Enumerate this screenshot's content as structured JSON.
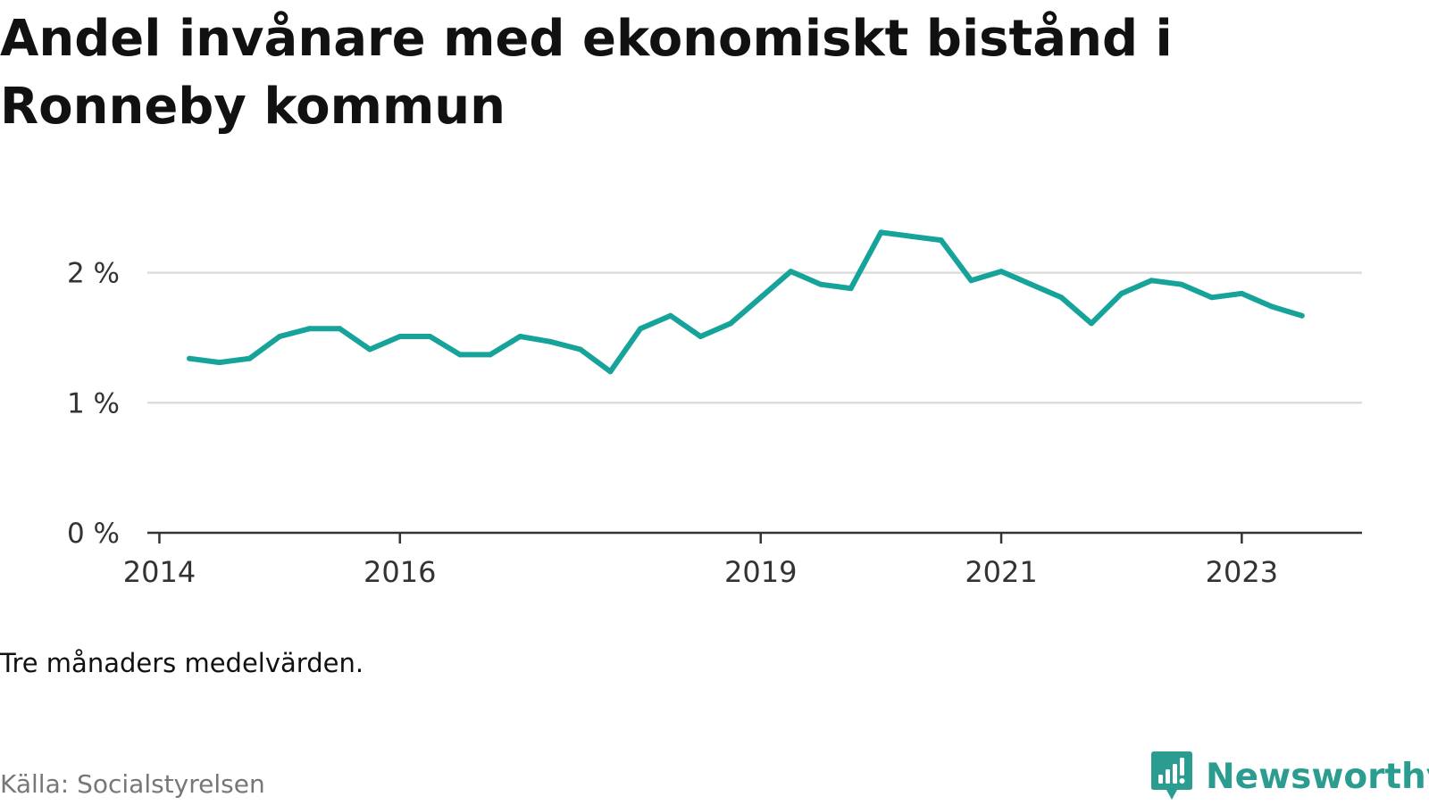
{
  "chart_data": {
    "type": "line",
    "title": "Andel invånare med ekonomiskt bistånd i Ronneby kommun",
    "xlabel": "",
    "ylabel": "",
    "x_tick_labels": [
      "2014",
      "2016",
      "2019",
      "2021",
      "2023"
    ],
    "x_tick_years": [
      2014,
      2016,
      2019,
      2021,
      2023
    ],
    "y_ticks": [
      0,
      1,
      2
    ],
    "y_tick_labels": [
      "0 %",
      "1 %",
      "2 %"
    ],
    "ylim": [
      0,
      2.45
    ],
    "xlim": [
      2013.9,
      2024.0
    ],
    "grid": true,
    "series": [
      {
        "color": "#16a39a",
        "points": [
          {
            "x": "2014-04",
            "y": 1.34
          },
          {
            "x": "2014-07",
            "y": 1.31
          },
          {
            "x": "2014-10",
            "y": 1.34
          },
          {
            "x": "2015-01",
            "y": 1.51
          },
          {
            "x": "2015-04",
            "y": 1.57
          },
          {
            "x": "2015-07",
            "y": 1.57
          },
          {
            "x": "2015-10",
            "y": 1.41
          },
          {
            "x": "2016-01",
            "y": 1.51
          },
          {
            "x": "2016-04",
            "y": 1.51
          },
          {
            "x": "2016-07",
            "y": 1.37
          },
          {
            "x": "2016-10",
            "y": 1.37
          },
          {
            "x": "2017-01",
            "y": 1.51
          },
          {
            "x": "2017-04",
            "y": 1.47
          },
          {
            "x": "2017-07",
            "y": 1.41
          },
          {
            "x": "2017-10",
            "y": 1.24
          },
          {
            "x": "2018-01",
            "y": 1.57
          },
          {
            "x": "2018-04",
            "y": 1.67
          },
          {
            "x": "2018-07",
            "y": 1.51
          },
          {
            "x": "2018-10",
            "y": 1.61
          },
          {
            "x": "2019-01",
            "y": 1.81
          },
          {
            "x": "2019-04",
            "y": 2.01
          },
          {
            "x": "2019-07",
            "y": 1.91
          },
          {
            "x": "2019-10",
            "y": 1.88
          },
          {
            "x": "2020-01",
            "y": 2.31
          },
          {
            "x": "2020-04",
            "y": 2.28
          },
          {
            "x": "2020-07",
            "y": 2.25
          },
          {
            "x": "2020-10",
            "y": 1.94
          },
          {
            "x": "2021-01",
            "y": 2.01
          },
          {
            "x": "2021-04",
            "y": 1.91
          },
          {
            "x": "2021-07",
            "y": 1.81
          },
          {
            "x": "2021-10",
            "y": 1.61
          },
          {
            "x": "2022-01",
            "y": 1.84
          },
          {
            "x": "2022-04",
            "y": 1.94
          },
          {
            "x": "2022-07",
            "y": 1.91
          },
          {
            "x": "2022-10",
            "y": 1.81
          },
          {
            "x": "2023-01",
            "y": 1.84
          },
          {
            "x": "2023-04",
            "y": 1.74
          },
          {
            "x": "2023-07",
            "y": 1.67
          }
        ]
      }
    ]
  },
  "note": "Tre månaders medelvärden.",
  "source": "Källa: Socialstyrelsen",
  "brand": {
    "name": "Newsworthy",
    "icon": "newsworthy-logo-icon",
    "color": "#2a9d90"
  },
  "colors": {
    "grid": "#dddddd",
    "axis": "#333333",
    "tick_text": "#333333"
  }
}
